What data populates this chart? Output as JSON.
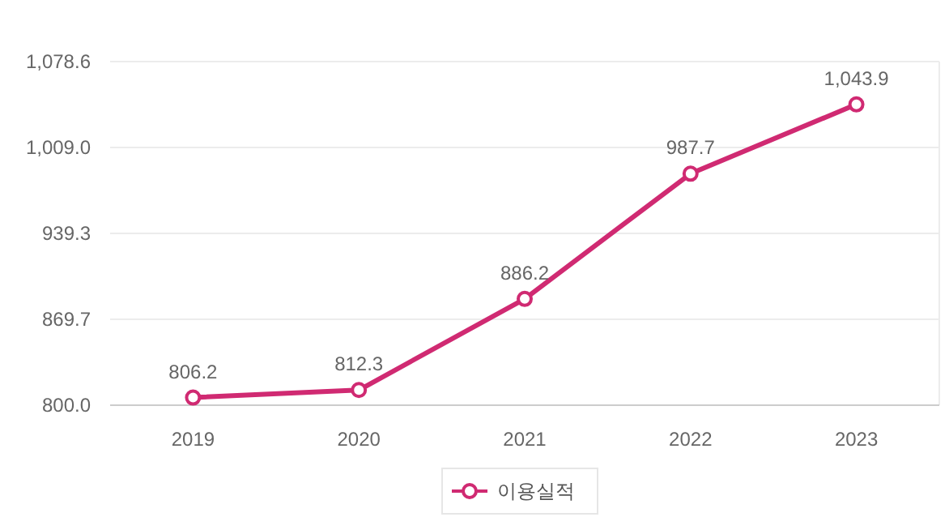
{
  "chart_data": {
    "type": "line",
    "categories": [
      "2019",
      "2020",
      "2021",
      "2022",
      "2023"
    ],
    "series": [
      {
        "name": "이용실적",
        "color": "#d02a72",
        "values": [
          806.2,
          812.3,
          886.2,
          987.7,
          1043.9
        ],
        "value_labels": [
          "806.2",
          "812.3",
          "886.2",
          "987.7",
          "1,043.9"
        ]
      }
    ],
    "ylim": [
      800.0,
      1078.6
    ],
    "yticks": [
      {
        "value": 800.0,
        "label": "800.0"
      },
      {
        "value": 869.7,
        "label": "869.7"
      },
      {
        "value": 939.3,
        "label": "939.3"
      },
      {
        "value": 1009.0,
        "label": "1,009.0"
      },
      {
        "value": 1078.6,
        "label": "1,078.6"
      }
    ],
    "grid": "y",
    "legend": "bottom",
    "marker": "circle",
    "line_style": "solid"
  }
}
